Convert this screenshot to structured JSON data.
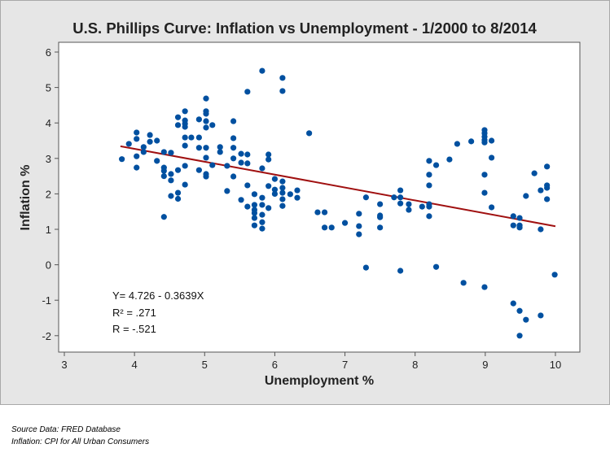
{
  "chart_data": {
    "type": "scatter",
    "title": "U.S. Phillips Curve: Inflation vs Unemployment - 1/2000 to 8/2014",
    "xlabel": "Unemployment %",
    "ylabel": "Inflation %",
    "xlim": [
      2.9,
      10.35
    ],
    "ylim": [
      -2.5,
      6.25
    ],
    "xticks": [
      3,
      4,
      5,
      6,
      7,
      8,
      9,
      10
    ],
    "yticks": [
      -2,
      -1,
      0,
      1,
      2,
      3,
      4,
      5,
      6
    ],
    "grid": false,
    "point_color": "#0050a0",
    "line_color": "#a01010",
    "regression": {
      "intercept": 4.726,
      "slope": -0.3639,
      "x_range": [
        3.8,
        10
      ]
    },
    "annotations": [
      "Y= 4.726 - 0.3639X",
      "R² = .271",
      "R  = -.521"
    ],
    "points": [
      [
        3.82,
        2.98
      ],
      [
        3.92,
        3.41
      ],
      [
        4.03,
        3.73
      ],
      [
        4.03,
        3.55
      ],
      [
        4.03,
        3.06
      ],
      [
        4.03,
        2.74
      ],
      [
        4.13,
        3.32
      ],
      [
        4.13,
        3.18
      ],
      [
        4.22,
        3.66
      ],
      [
        4.22,
        3.47
      ],
      [
        4.32,
        3.5
      ],
      [
        4.32,
        2.93
      ],
      [
        4.42,
        3.18
      ],
      [
        4.42,
        2.74
      ],
      [
        4.42,
        2.65
      ],
      [
        4.42,
        2.5
      ],
      [
        4.42,
        1.35
      ],
      [
        4.52,
        3.16
      ],
      [
        4.52,
        2.56
      ],
      [
        4.52,
        2.38
      ],
      [
        4.52,
        1.94
      ],
      [
        4.62,
        4.16
      ],
      [
        4.62,
        3.94
      ],
      [
        4.62,
        2.67
      ],
      [
        4.62,
        2.03
      ],
      [
        4.62,
        1.86
      ],
      [
        4.72,
        4.33
      ],
      [
        4.72,
        4.07
      ],
      [
        4.72,
        3.98
      ],
      [
        4.72,
        3.89
      ],
      [
        4.72,
        3.59
      ],
      [
        4.72,
        3.36
      ],
      [
        4.72,
        2.79
      ],
      [
        4.72,
        2.26
      ],
      [
        4.81,
        3.59
      ],
      [
        4.92,
        4.1
      ],
      [
        4.92,
        3.59
      ],
      [
        4.92,
        3.3
      ],
      [
        4.92,
        2.67
      ],
      [
        5.02,
        4.69
      ],
      [
        5.02,
        4.33
      ],
      [
        5.02,
        4.26
      ],
      [
        5.02,
        4.05
      ],
      [
        5.02,
        3.87
      ],
      [
        5.02,
        3.3
      ],
      [
        5.02,
        3.02
      ],
      [
        5.02,
        2.56
      ],
      [
        5.02,
        2.49
      ],
      [
        5.11,
        3.94
      ],
      [
        5.11,
        2.81
      ],
      [
        5.22,
        3.32
      ],
      [
        5.22,
        3.18
      ],
      [
        5.32,
        2.79
      ],
      [
        5.32,
        2.08
      ],
      [
        5.41,
        4.05
      ],
      [
        5.41,
        3.57
      ],
      [
        5.41,
        3.3
      ],
      [
        5.41,
        3.0
      ],
      [
        5.41,
        2.49
      ],
      [
        5.52,
        3.13
      ],
      [
        5.52,
        2.88
      ],
      [
        5.52,
        1.83
      ],
      [
        5.61,
        4.88
      ],
      [
        5.61,
        3.11
      ],
      [
        5.61,
        2.86
      ],
      [
        5.61,
        2.24
      ],
      [
        5.61,
        1.64
      ],
      [
        5.71,
        1.99
      ],
      [
        5.71,
        1.69
      ],
      [
        5.71,
        1.55
      ],
      [
        5.71,
        1.46
      ],
      [
        5.71,
        1.32
      ],
      [
        5.71,
        1.11
      ],
      [
        5.82,
        5.47
      ],
      [
        5.82,
        2.72
      ],
      [
        5.82,
        1.89
      ],
      [
        5.82,
        1.69
      ],
      [
        5.82,
        1.41
      ],
      [
        5.82,
        1.2
      ],
      [
        5.82,
        1.02
      ],
      [
        5.91,
        3.11
      ],
      [
        5.91,
        2.97
      ],
      [
        5.91,
        2.22
      ],
      [
        5.91,
        1.6
      ],
      [
        6.0,
        2.42
      ],
      [
        6.0,
        2.12
      ],
      [
        6.0,
        2.0
      ],
      [
        6.11,
        5.27
      ],
      [
        6.11,
        4.9
      ],
      [
        6.11,
        2.35
      ],
      [
        6.11,
        2.17
      ],
      [
        6.11,
        2.03
      ],
      [
        6.11,
        1.85
      ],
      [
        6.11,
        1.66
      ],
      [
        6.22,
        1.99
      ],
      [
        6.32,
        2.1
      ],
      [
        6.32,
        1.89
      ],
      [
        6.49,
        3.71
      ],
      [
        6.61,
        1.48
      ],
      [
        6.71,
        1.48
      ],
      [
        6.71,
        1.05
      ],
      [
        6.81,
        1.05
      ],
      [
        7.0,
        1.18
      ],
      [
        7.2,
        1.44
      ],
      [
        7.2,
        1.09
      ],
      [
        7.2,
        0.86
      ],
      [
        7.3,
        1.9
      ],
      [
        7.3,
        -0.08
      ],
      [
        7.5,
        1.71
      ],
      [
        7.5,
        1.39
      ],
      [
        7.5,
        1.34
      ],
      [
        7.5,
        1.05
      ],
      [
        7.7,
        1.9
      ],
      [
        7.79,
        2.1
      ],
      [
        7.79,
        1.9
      ],
      [
        7.79,
        1.73
      ],
      [
        7.79,
        -0.17
      ],
      [
        7.91,
        1.71
      ],
      [
        7.91,
        1.55
      ],
      [
        8.1,
        1.64
      ],
      [
        8.2,
        2.93
      ],
      [
        8.2,
        2.54
      ],
      [
        8.2,
        2.24
      ],
      [
        8.2,
        1.71
      ],
      [
        8.2,
        1.64
      ],
      [
        8.2,
        1.37
      ],
      [
        8.3,
        2.81
      ],
      [
        8.3,
        -0.06
      ],
      [
        8.49,
        2.97
      ],
      [
        8.6,
        3.41
      ],
      [
        8.69,
        -0.51
      ],
      [
        8.8,
        3.48
      ],
      [
        8.99,
        3.8
      ],
      [
        8.99,
        3.71
      ],
      [
        8.99,
        3.61
      ],
      [
        8.99,
        3.52
      ],
      [
        8.99,
        3.45
      ],
      [
        8.99,
        2.54
      ],
      [
        8.99,
        2.03
      ],
      [
        8.99,
        -0.63
      ],
      [
        9.09,
        3.5
      ],
      [
        9.09,
        3.02
      ],
      [
        9.09,
        1.62
      ],
      [
        9.4,
        1.37
      ],
      [
        9.4,
        1.11
      ],
      [
        9.4,
        -1.09
      ],
      [
        9.49,
        1.32
      ],
      [
        9.49,
        1.11
      ],
      [
        9.49,
        1.05
      ],
      [
        9.49,
        -1.3
      ],
      [
        9.49,
        -2.0
      ],
      [
        9.58,
        1.94
      ],
      [
        9.58,
        -1.55
      ],
      [
        9.7,
        2.58
      ],
      [
        9.79,
        2.1
      ],
      [
        9.79,
        1.0
      ],
      [
        9.79,
        -1.43
      ],
      [
        9.88,
        2.77
      ],
      [
        9.88,
        2.24
      ],
      [
        9.88,
        2.17
      ],
      [
        9.88,
        1.85
      ],
      [
        9.99,
        -0.28
      ]
    ]
  },
  "footer": {
    "source": "Source Data:  FRED Database",
    "inflation": "Inflation:  CPI for All Urban Consumers"
  }
}
